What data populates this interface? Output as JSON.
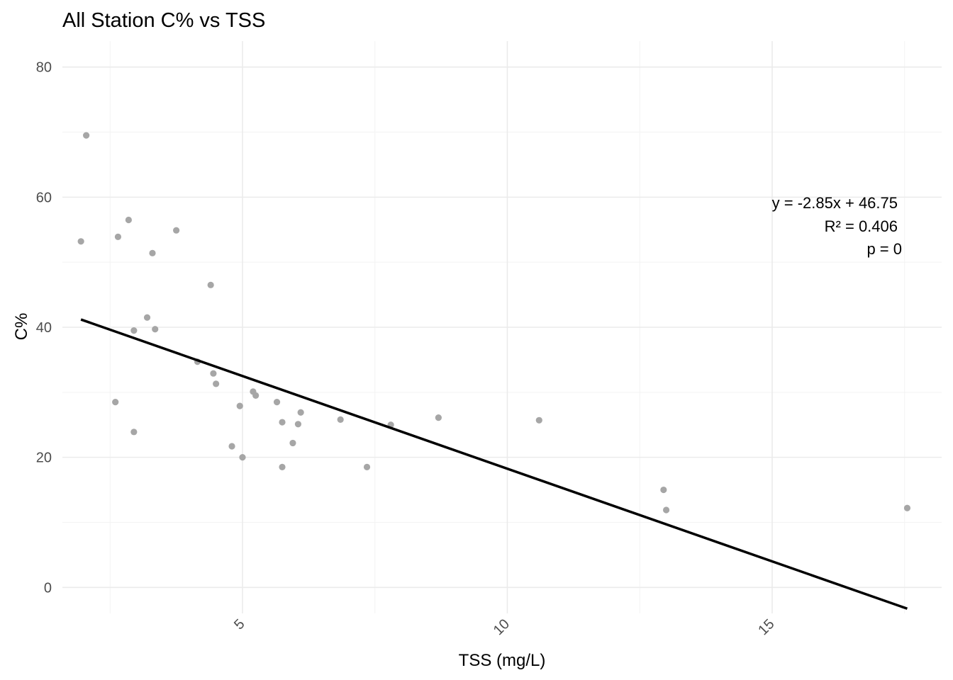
{
  "chart_data": {
    "type": "scatter",
    "title": "All Station C% vs TSS",
    "xlabel": "TSS (mg/L)",
    "ylabel": "C%",
    "xlim": [
      1.6,
      18.2
    ],
    "ylim": [
      -4,
      84
    ],
    "x_ticks": [
      5,
      10,
      15
    ],
    "x_minor_ticks": [
      2.5,
      7.5,
      12.5,
      17.5
    ],
    "y_ticks": [
      0,
      20,
      40,
      60,
      80
    ],
    "y_minor_ticks": [
      10,
      30,
      50,
      70
    ],
    "grid": true,
    "point_color": "#a6a6a6",
    "points": [
      {
        "x": 2.05,
        "y": 69.5
      },
      {
        "x": 1.95,
        "y": 53.2
      },
      {
        "x": 2.85,
        "y": 56.5
      },
      {
        "x": 2.65,
        "y": 53.9
      },
      {
        "x": 3.75,
        "y": 54.9
      },
      {
        "x": 3.3,
        "y": 51.4
      },
      {
        "x": 4.4,
        "y": 46.5
      },
      {
        "x": 3.2,
        "y": 41.5
      },
      {
        "x": 2.95,
        "y": 39.5
      },
      {
        "x": 3.35,
        "y": 39.7
      },
      {
        "x": 4.15,
        "y": 34.7
      },
      {
        "x": 4.45,
        "y": 32.9
      },
      {
        "x": 4.5,
        "y": 31.3
      },
      {
        "x": 5.2,
        "y": 30.1
      },
      {
        "x": 5.25,
        "y": 29.5
      },
      {
        "x": 5.65,
        "y": 28.5
      },
      {
        "x": 2.6,
        "y": 28.5
      },
      {
        "x": 4.95,
        "y": 27.9
      },
      {
        "x": 6.1,
        "y": 26.9
      },
      {
        "x": 6.85,
        "y": 25.8
      },
      {
        "x": 5.75,
        "y": 25.4
      },
      {
        "x": 6.05,
        "y": 25.1
      },
      {
        "x": 7.8,
        "y": 25.0
      },
      {
        "x": 8.7,
        "y": 26.1
      },
      {
        "x": 10.6,
        "y": 25.7
      },
      {
        "x": 2.95,
        "y": 23.9
      },
      {
        "x": 4.8,
        "y": 21.7
      },
      {
        "x": 5.95,
        "y": 22.2
      },
      {
        "x": 5.0,
        "y": 20.0
      },
      {
        "x": 5.75,
        "y": 18.5
      },
      {
        "x": 7.35,
        "y": 18.5
      },
      {
        "x": 12.95,
        "y": 15.0
      },
      {
        "x": 13.0,
        "y": 11.9
      },
      {
        "x": 17.55,
        "y": 12.2
      }
    ],
    "fit_line": {
      "slope": -2.85,
      "intercept": 46.75,
      "x_range": [
        1.95,
        17.55
      ],
      "color": "#000000"
    },
    "annotations": {
      "equation": "y = -2.85x + 46.75",
      "r_squared": "R² = 0.406",
      "p_value": "p = 0"
    }
  }
}
